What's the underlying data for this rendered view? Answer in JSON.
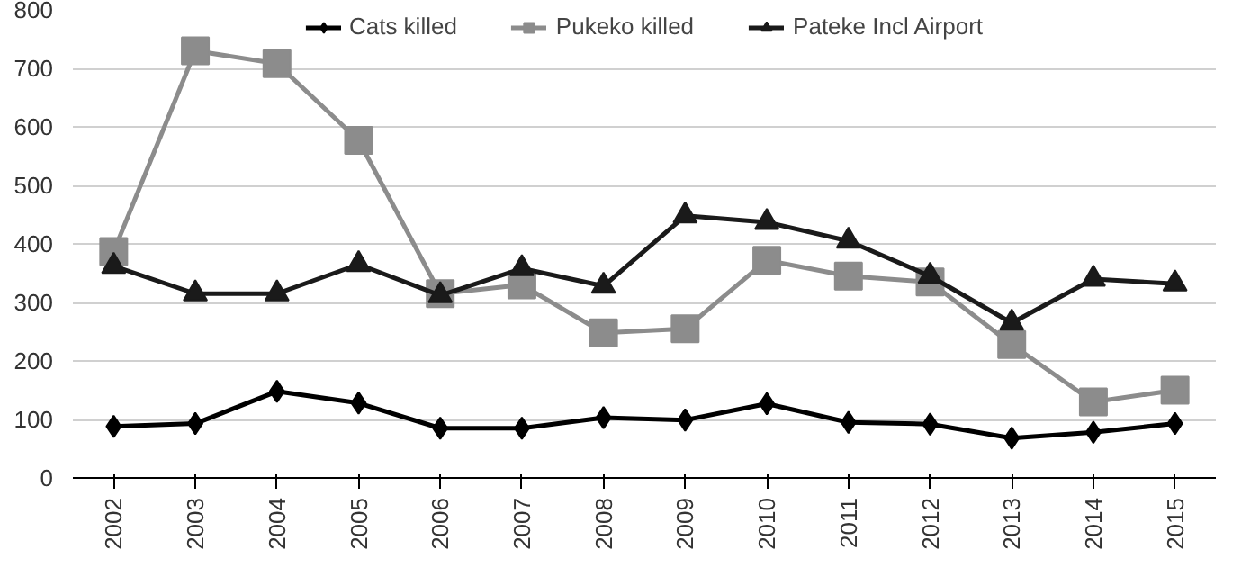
{
  "chart_data": {
    "type": "line",
    "categories": [
      "2002",
      "2003",
      "2004",
      "2005",
      "2006",
      "2007",
      "2008",
      "2009",
      "2010",
      "2011",
      "2012",
      "2013",
      "2014",
      "2015"
    ],
    "series": [
      {
        "name": "Cats killed",
        "color": "#000000",
        "marker": "diamond",
        "values": [
          88,
          93,
          148,
          128,
          85,
          85,
          103,
          99,
          127,
          95,
          92,
          68,
          78,
          93
        ]
      },
      {
        "name": "Pukeko killed",
        "color": "#8c8c8c",
        "marker": "square",
        "values": [
          387,
          730,
          708,
          577,
          315,
          330,
          248,
          255,
          372,
          345,
          335,
          228,
          130,
          150
        ]
      },
      {
        "name": "Pateke Incl Airport",
        "color": "#1a1a1a",
        "marker": "triangle",
        "values": [
          362,
          315,
          315,
          365,
          312,
          358,
          328,
          448,
          437,
          405,
          345,
          265,
          340,
          332
        ]
      }
    ],
    "ylim": [
      0,
      800
    ],
    "yticks": [
      0,
      100,
      200,
      300,
      400,
      500,
      600,
      700,
      800
    ],
    "grid": "y",
    "legend": "top",
    "line_style": "solid"
  }
}
